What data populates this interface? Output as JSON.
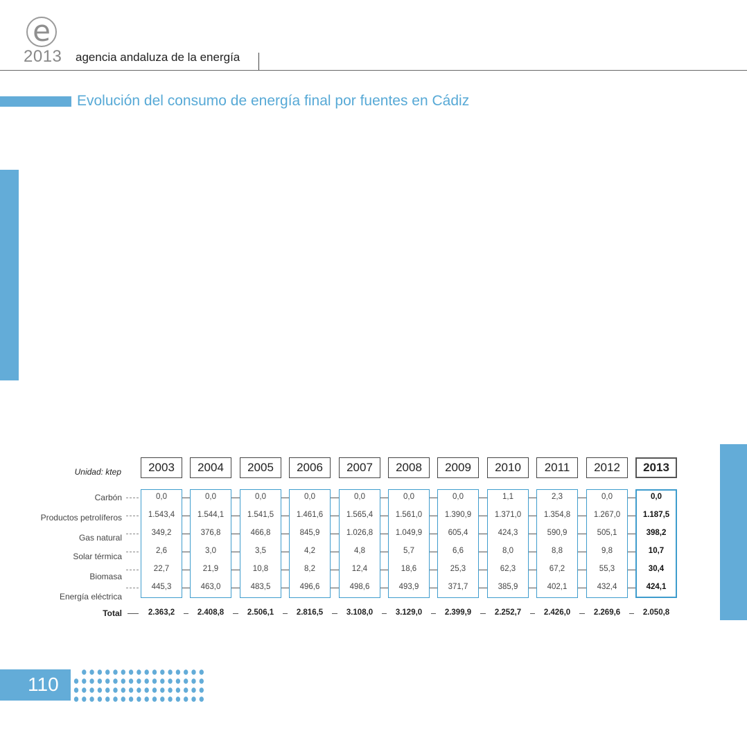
{
  "header": {
    "logo_letter": "e",
    "year": "2013",
    "agency": "agencia andaluza de la energía"
  },
  "title": "Evolución del consumo de energía final por fuentes en Cádiz",
  "table": {
    "unit": "Unidad: ktep",
    "years": [
      "2003",
      "2004",
      "2005",
      "2006",
      "2007",
      "2008",
      "2009",
      "2010",
      "2011",
      "2012",
      "2013"
    ],
    "rows": [
      {
        "label": "Carbón",
        "values": [
          "0,0",
          "0,0",
          "0,0",
          "0,0",
          "0,0",
          "0,0",
          "0,0",
          "1,1",
          "2,3",
          "0,0",
          "0,0"
        ]
      },
      {
        "label": "Productos petrolíferos",
        "values": [
          "1.543,4",
          "1.544,1",
          "1.541,5",
          "1.461,6",
          "1.565,4",
          "1.561,0",
          "1.390,9",
          "1.371,0",
          "1.354,8",
          "1.267,0",
          "1.187,5"
        ]
      },
      {
        "label": "Gas natural",
        "values": [
          "349,2",
          "376,8",
          "466,8",
          "845,9",
          "1.026,8",
          "1.049,9",
          "605,4",
          "424,3",
          "590,9",
          "505,1",
          "398,2"
        ]
      },
      {
        "label": "Solar térmica",
        "values": [
          "2,6",
          "3,0",
          "3,5",
          "4,2",
          "4,8",
          "5,7",
          "6,6",
          "8,0",
          "8,8",
          "9,8",
          "10,7"
        ]
      },
      {
        "label": "Biomasa",
        "values": [
          "22,7",
          "21,9",
          "10,8",
          "8,2",
          "12,4",
          "18,6",
          "25,3",
          "62,3",
          "67,2",
          "55,3",
          "30,4"
        ]
      },
      {
        "label": "Energía eléctrica",
        "values": [
          "445,3",
          "463,0",
          "483,5",
          "496,6",
          "498,6",
          "493,9",
          "371,7",
          "385,9",
          "402,1",
          "432,4",
          "424,1"
        ]
      }
    ],
    "total_label": "Total",
    "totals": [
      "2.363,2",
      "2.408,8",
      "2.506,1",
      "2.816,5",
      "3.108,0",
      "3.129,0",
      "2.399,9",
      "2.252,7",
      "2.426,0",
      "2.269,6",
      "2.050,8"
    ]
  },
  "footer": {
    "page_number": "110"
  },
  "colors": {
    "accent": "#63acd8",
    "frame": "#3e9ccd"
  }
}
